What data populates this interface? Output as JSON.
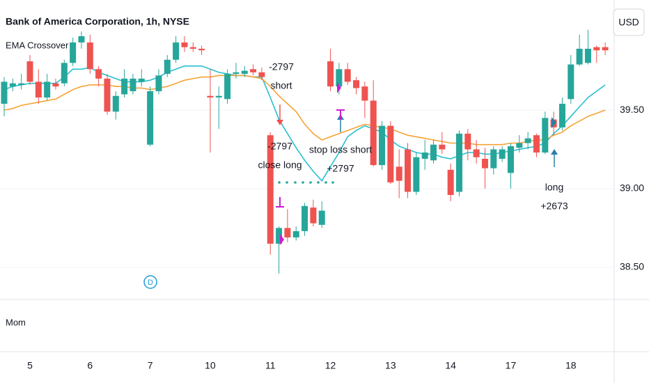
{
  "chart_data": {
    "type": "candlestick",
    "title": "Bank of America Corporation, 1h, NYSE",
    "indicator": "EMA Crossover",
    "lower_pane": "Mom",
    "currency": "USD",
    "marker": "D",
    "categories": [
      null,
      null,
      null,
      "5",
      null,
      null,
      null,
      null,
      null,
      null,
      "6",
      null,
      null,
      null,
      null,
      null,
      null,
      "7",
      null,
      null,
      null,
      null,
      null,
      null,
      "10",
      null,
      null,
      null,
      null,
      null,
      null,
      "11",
      null,
      null,
      null,
      null,
      null,
      null,
      "12",
      null,
      null,
      null,
      null,
      null,
      null,
      "13",
      null,
      null,
      null,
      null,
      null,
      null,
      "14",
      null,
      null,
      null,
      null,
      null,
      null,
      "17",
      null,
      null,
      null,
      null,
      null,
      null,
      "18",
      null,
      null,
      null,
      null
    ],
    "open": [
      39.54,
      39.65,
      39.66,
      39.81,
      39.68,
      39.58,
      39.67,
      39.67,
      39.8,
      39.93,
      39.93,
      39.76,
      39.7,
      39.49,
      39.6,
      39.62,
      39.68,
      39.28,
      39.62,
      39.73,
      39.82,
      39.93,
      39.9,
      39.89,
      39.59,
      39.58,
      39.57,
      39.73,
      39.73,
      39.76,
      39.74,
      39.34,
      38.65,
      38.75,
      38.69,
      38.73,
      38.88,
      38.77,
      39.81,
      39.65,
      39.76,
      39.69,
      39.65,
      39.56,
      39.15,
      39.4,
      39.14,
      39.25,
      38.98,
      39.19,
      39.18,
      39.28,
      39.12,
      38.98,
      39.35,
      39.25,
      39.19,
      39.13,
      39.19,
      39.1,
      39.26,
      39.29,
      39.34,
      39.23,
      39.44,
      39.39,
      39.57,
      39.79,
      39.8,
      39.9,
      39.9
    ],
    "high": [
      39.71,
      39.7,
      39.73,
      39.85,
      39.76,
      39.73,
      39.7,
      39.82,
      39.96,
      40.0,
      39.98,
      39.78,
      39.73,
      39.62,
      39.76,
      39.73,
      39.76,
      39.65,
      39.76,
      39.85,
      39.97,
      39.97,
      39.93,
      39.91,
      39.76,
      39.65,
      39.76,
      39.8,
      39.78,
      39.79,
      39.77,
      39.36,
      38.76,
      38.87,
      38.76,
      38.91,
      38.93,
      38.92,
      39.89,
      39.8,
      39.8,
      39.71,
      39.68,
      39.69,
      39.43,
      39.43,
      39.25,
      39.29,
      39.23,
      39.31,
      39.31,
      39.36,
      39.16,
      39.37,
      39.38,
      39.31,
      39.26,
      39.27,
      39.27,
      39.29,
      39.34,
      39.36,
      39.35,
      39.49,
      39.49,
      39.58,
      39.85,
      39.98,
      40.01,
      39.91,
      39.93
    ],
    "low": [
      39.46,
      39.62,
      39.63,
      39.66,
      39.54,
      39.56,
      39.63,
      39.65,
      39.78,
      39.89,
      39.73,
      39.65,
      39.47,
      39.44,
      39.58,
      39.6,
      39.65,
      39.27,
      39.6,
      39.71,
      39.8,
      39.87,
      39.87,
      39.85,
      39.23,
      39.38,
      39.54,
      39.7,
      39.71,
      39.72,
      39.69,
      38.58,
      38.46,
      38.66,
      38.67,
      38.7,
      38.76,
      38.75,
      39.62,
      39.6,
      39.66,
      39.6,
      39.45,
      39.14,
      39.12,
      39.03,
      38.94,
      38.94,
      38.96,
      39.12,
      39.16,
      39.22,
      38.92,
      38.95,
      39.18,
      39.16,
      39.0,
      39.09,
      39.17,
      39.0,
      39.23,
      39.25,
      39.2,
      39.22,
      39.34,
      39.37,
      39.54,
      39.78,
      39.79,
      39.8,
      39.85
    ],
    "close": [
      39.68,
      39.67,
      39.67,
      39.68,
      39.58,
      39.68,
      39.65,
      39.8,
      39.93,
      39.97,
      39.76,
      39.7,
      39.49,
      39.59,
      39.7,
      39.7,
      39.7,
      39.62,
      39.72,
      39.82,
      39.93,
      39.9,
      39.89,
      39.88,
      39.58,
      39.59,
      39.73,
      39.74,
      39.75,
      39.74,
      39.71,
      38.65,
      38.75,
      38.69,
      38.73,
      38.89,
      38.78,
      38.86,
      39.65,
      39.76,
      39.68,
      39.64,
      39.56,
      39.15,
      39.4,
      39.04,
      39.05,
      38.98,
      39.2,
      39.23,
      39.28,
      39.25,
      38.96,
      39.35,
      39.25,
      39.2,
      39.13,
      39.25,
      39.25,
      39.27,
      39.29,
      39.32,
      39.23,
      39.45,
      39.39,
      39.54,
      39.79,
      39.89,
      39.89,
      39.88,
      39.88
    ],
    "up_color": "#26a69a",
    "down_color": "#ef5350",
    "lines": [
      {
        "color": "#26bfd0",
        "values": [
          39.63,
          39.65,
          39.66,
          39.67,
          39.67,
          39.67,
          39.67,
          39.71,
          39.76,
          39.76,
          39.77,
          39.74,
          39.72,
          39.7,
          39.68,
          39.68,
          39.68,
          39.69,
          39.71,
          39.74,
          39.76,
          39.78,
          39.78,
          39.78,
          39.76,
          39.74,
          39.73,
          39.72,
          39.72,
          39.71,
          39.71,
          39.58,
          39.44,
          39.35,
          39.26,
          39.18,
          39.11,
          39.05,
          39.14,
          39.23,
          39.33,
          39.37,
          39.4,
          39.38,
          39.36,
          39.31,
          39.27,
          39.25,
          39.23,
          39.22,
          39.22,
          39.2,
          39.19,
          39.21,
          39.23,
          39.23,
          39.22,
          39.22,
          39.23,
          39.24,
          39.25,
          39.26,
          39.27,
          39.29,
          39.35,
          39.4,
          39.46,
          39.52,
          39.58,
          39.62,
          39.66
        ]
      },
      {
        "color": "#f7a234",
        "values": [
          39.5,
          39.51,
          39.53,
          39.54,
          39.55,
          39.56,
          39.57,
          39.6,
          39.63,
          39.65,
          39.66,
          39.66,
          39.66,
          39.65,
          39.65,
          39.64,
          39.64,
          39.63,
          39.64,
          39.65,
          39.67,
          39.69,
          39.7,
          39.71,
          39.71,
          39.72,
          39.72,
          39.72,
          39.72,
          39.71,
          39.7,
          39.65,
          39.59,
          39.54,
          39.49,
          39.41,
          39.35,
          39.31,
          39.33,
          39.35,
          39.37,
          39.39,
          39.41,
          39.4,
          39.39,
          39.38,
          39.36,
          39.34,
          39.33,
          39.32,
          39.31,
          39.3,
          39.29,
          39.29,
          39.29,
          39.28,
          39.28,
          39.28,
          39.28,
          39.29,
          39.29,
          39.3,
          39.31,
          39.31,
          39.34,
          39.36,
          39.4,
          39.43,
          39.46,
          39.48,
          39.5
        ]
      }
    ],
    "ylim": [
      38.3,
      40.2
    ],
    "yticks": [
      {
        "value": 38.5,
        "label": "38.50"
      },
      {
        "value": 39,
        "label": "39.00"
      },
      {
        "value": 39.5,
        "label": "39.50"
      }
    ],
    "grid": true,
    "annotations": [
      {
        "lines": [
          "-2797",
          "short"
        ]
      },
      {
        "lines": [
          "-2797",
          "close long"
        ]
      },
      {
        "lines": [
          "stop loss short",
          "+2797"
        ]
      },
      {
        "lines": [
          "long",
          "+2673"
        ]
      }
    ]
  }
}
